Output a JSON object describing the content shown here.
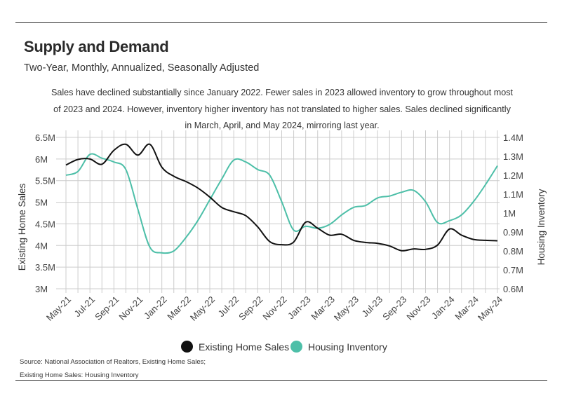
{
  "title": "Supply and Demand",
  "subtitle": "Two-Year, Monthly, Annualized, Seasonally Adjusted",
  "description": "Sales have declined substantially since January 2022. Fewer sales in 2023 allowed inventory to grow throughout most of 2023 and 2024. However, inventory higher inventory has not translated to higher sales. Sales declined significantly in March, April, and May 2024, mirroring last year.",
  "source_line1": "Source:  National Association of Realtors, Existing Home Sales;",
  "source_line2": "Existing Home Sales: Housing Inventory",
  "colors": {
    "sales": "#111111",
    "inventory": "#4dbfa8",
    "grid": "#cccccc"
  },
  "chart_data": {
    "type": "line",
    "x": [
      "May-21",
      "Jun-21",
      "Jul-21",
      "Aug-21",
      "Sep-21",
      "Oct-21",
      "Nov-21",
      "Dec-21",
      "Jan-22",
      "Feb-22",
      "Mar-22",
      "Apr-22",
      "May-22",
      "Jun-22",
      "Jul-22",
      "Aug-22",
      "Sep-22",
      "Oct-22",
      "Nov-22",
      "Dec-22",
      "Jan-23",
      "Feb-23",
      "Mar-23",
      "Apr-23",
      "May-23",
      "Jun-23",
      "Jul-23",
      "Aug-23",
      "Sep-23",
      "Oct-23",
      "Nov-23",
      "Dec-23",
      "Jan-24",
      "Feb-24",
      "Mar-24",
      "Apr-24",
      "May-24"
    ],
    "x_tick_labels": [
      "May-21",
      "Jul-21",
      "Sep-21",
      "Nov-21",
      "Jan-22",
      "Mar-22",
      "May-22",
      "Jul-22",
      "Sep-22",
      "Nov-22",
      "Jan-23",
      "Mar-23",
      "May-23",
      "Jul-23",
      "Sep-23",
      "Nov-23",
      "Jan-24",
      "Mar-24",
      "May-24"
    ],
    "ylabel_left": "Existing Home Sales",
    "ylabel_right": "Housing Inventory",
    "ylim_left": [
      3000000,
      6500000
    ],
    "ylim_right": [
      600000,
      1400000
    ],
    "yticks_left": [
      "3M",
      "3.5M",
      "4M",
      "4.5M",
      "5M",
      "5.5M",
      "6M",
      "6.5M"
    ],
    "yticks_right": [
      "0.6M",
      "0.7M",
      "0.8M",
      "0.9M",
      "1M",
      "1.1M",
      "1.2M",
      "1.3M",
      "1.4M"
    ],
    "grid": true,
    "legend_position": "bottom",
    "series": [
      {
        "name": "Existing Home Sales",
        "axis": "left",
        "values": [
          5860000,
          5990000,
          6000000,
          5880000,
          6200000,
          6340000,
          6090000,
          6340000,
          5810000,
          5600000,
          5480000,
          5330000,
          5120000,
          4880000,
          4780000,
          4690000,
          4430000,
          4090000,
          4020000,
          4080000,
          4540000,
          4400000,
          4240000,
          4260000,
          4120000,
          4070000,
          4050000,
          3990000,
          3880000,
          3920000,
          3910000,
          4010000,
          4380000,
          4240000,
          4140000,
          4120000,
          4110000
        ]
      },
      {
        "name": "Housing Inventory",
        "axis": "right",
        "values": [
          1200000,
          1220000,
          1310000,
          1290000,
          1270000,
          1230000,
          1020000,
          820000,
          790000,
          800000,
          870000,
          960000,
          1070000,
          1180000,
          1280000,
          1270000,
          1230000,
          1200000,
          1060000,
          910000,
          930000,
          920000,
          940000,
          990000,
          1030000,
          1040000,
          1080000,
          1090000,
          1110000,
          1120000,
          1060000,
          950000,
          960000,
          990000,
          1060000,
          1150000,
          1250000
        ]
      }
    ]
  }
}
